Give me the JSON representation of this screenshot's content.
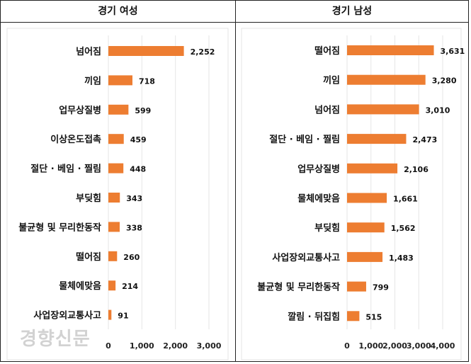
{
  "watermark": "경향신문",
  "chart_data": [
    {
      "type": "bar",
      "orientation": "horizontal",
      "title": "경기 여성",
      "categories": [
        "넘어짐",
        "끼임",
        "업무상질병",
        "이상온도접촉",
        "절단 · 베임 · 찔림",
        "부딪힘",
        "불균형 및 무리한동작",
        "떨어짐",
        "물체에맞음",
        "사업장외교통사고"
      ],
      "values": [
        2252,
        718,
        599,
        459,
        448,
        343,
        338,
        260,
        214,
        91
      ],
      "value_labels": [
        "2,252",
        "718",
        "599",
        "459",
        "448",
        "343",
        "338",
        "260",
        "214",
        "91"
      ],
      "xlim": [
        0,
        3000
      ],
      "xticks": [
        "0",
        "1,000",
        "2,000",
        "3,000"
      ],
      "grid": true,
      "color": "#ED7D31"
    },
    {
      "type": "bar",
      "orientation": "horizontal",
      "title": "경기 남성",
      "categories": [
        "떨어짐",
        "끼임",
        "넘어짐",
        "절단 · 베임 · 찔림",
        "업무상질병",
        "물체에맞음",
        "부딪힘",
        "사업장외교통사고",
        "불균형 및 무리한동작",
        "깔림 · 뒤집힘"
      ],
      "values": [
        3631,
        3280,
        3010,
        2473,
        2106,
        1661,
        1562,
        1483,
        799,
        515
      ],
      "value_labels": [
        "3,631",
        "3,280",
        "3,010",
        "2,473",
        "2,106",
        "1,661",
        "1,562",
        "1,483",
        "799",
        "515"
      ],
      "xlim": [
        0,
        4000
      ],
      "xticks": [
        "0",
        "1,000",
        "2,000",
        "3,000",
        "4,000"
      ],
      "grid": true,
      "color": "#ED7D31"
    }
  ]
}
